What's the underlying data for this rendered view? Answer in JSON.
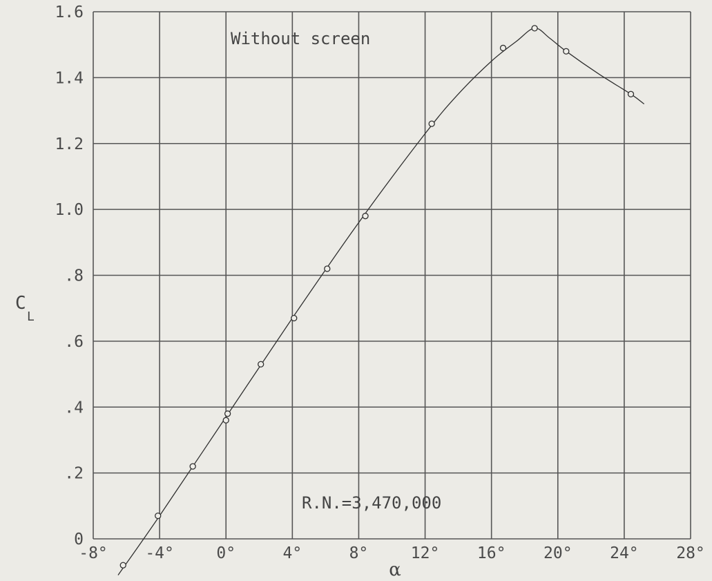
{
  "chart_data": {
    "type": "line",
    "x_ticks": [
      "-8°",
      "-4°",
      "0°",
      "4°",
      "8°",
      "12°",
      "16°",
      "20°",
      "24°",
      "28°"
    ],
    "y_ticks": [
      "0",
      ".2",
      ".4",
      ".6",
      ".8",
      "1.0",
      "1.2",
      "1.4",
      "1.6"
    ],
    "xlim": [
      -8,
      28
    ],
    "ylim": [
      0,
      1.6
    ],
    "xlabel": "α",
    "ylabel": "C",
    "ylabel_sub": "L",
    "grid": true,
    "annotations": {
      "top": "Without screen",
      "bottom": "R.N.=3,470,000"
    },
    "points": [
      {
        "x": -6.2,
        "y": -0.08
      },
      {
        "x": -4.1,
        "y": 0.07
      },
      {
        "x": -2.0,
        "y": 0.22
      },
      {
        "x": 0.0,
        "y": 0.36
      },
      {
        "x": 0.1,
        "y": 0.38
      },
      {
        "x": 2.1,
        "y": 0.53
      },
      {
        "x": 4.1,
        "y": 0.67
      },
      {
        "x": 6.1,
        "y": 0.82
      },
      {
        "x": 8.4,
        "y": 0.98
      },
      {
        "x": 12.4,
        "y": 1.26
      },
      {
        "x": 16.7,
        "y": 1.49
      },
      {
        "x": 18.6,
        "y": 1.55
      },
      {
        "x": 20.5,
        "y": 1.48
      },
      {
        "x": 24.4,
        "y": 1.35
      }
    ],
    "curve": [
      [
        -6.5,
        -0.11
      ],
      [
        -4.0,
        0.07
      ],
      [
        0.0,
        0.37
      ],
      [
        4.0,
        0.67
      ],
      [
        8.0,
        0.96
      ],
      [
        12.0,
        1.23
      ],
      [
        14.0,
        1.35
      ],
      [
        16.0,
        1.45
      ],
      [
        17.5,
        1.51
      ],
      [
        18.6,
        1.55
      ],
      [
        19.5,
        1.52
      ],
      [
        20.5,
        1.48
      ],
      [
        22.5,
        1.41
      ],
      [
        24.4,
        1.35
      ],
      [
        25.2,
        1.32
      ]
    ]
  }
}
